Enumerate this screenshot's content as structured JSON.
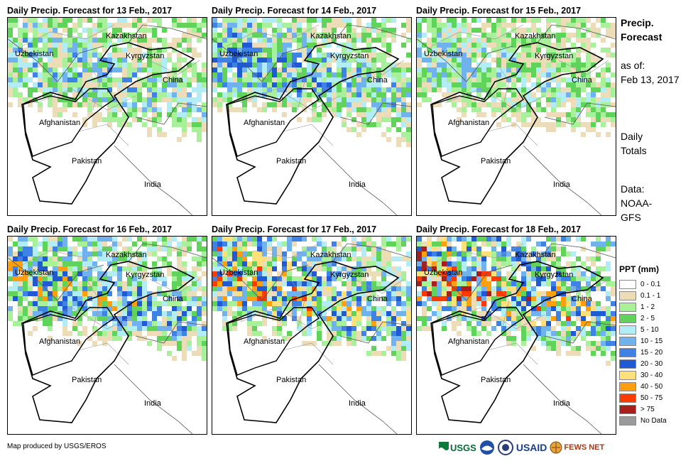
{
  "panels": [
    {
      "title": "Daily Precip. Forecast for 13 Feb., 2017"
    },
    {
      "title": "Daily Precip. Forecast for 14 Feb., 2017"
    },
    {
      "title": "Daily Precip. Forecast for 15 Feb., 2017"
    },
    {
      "title": "Daily Precip. Forecast for 16 Feb., 2017"
    },
    {
      "title": "Daily Precip. Forecast for 17 Feb., 2017"
    },
    {
      "title": "Daily Precip. Forecast for 18 Feb., 2017"
    }
  ],
  "countries": {
    "kazakhstan": "Kazakhstan",
    "uzbekistan": "Uzbekistan",
    "kyrgyzstan": "Kyrgyzstan",
    "china": "China",
    "afghanistan": "Afghanistan",
    "pakistan": "Pakistan",
    "india": "India"
  },
  "sidebar": {
    "title_line1": "Precip.",
    "title_line2": "Forecast",
    "asof_line1": "as of:",
    "asof_line2": "Feb 13, 2017",
    "daily_line1": "Daily",
    "daily_line2": "Totals",
    "data_line1": "Data:",
    "data_line2": "NOAA-",
    "data_line3": "GFS"
  },
  "legend": {
    "title": "PPT (mm)",
    "items": [
      {
        "label": "0 - 0.1",
        "color": "#ffffff"
      },
      {
        "label": "0.1 - 1",
        "color": "#ecdcb8"
      },
      {
        "label": "1 - 2",
        "color": "#a8f09a"
      },
      {
        "label": "2 - 5",
        "color": "#5fd35a"
      },
      {
        "label": "5 - 10",
        "color": "#b2ecf5"
      },
      {
        "label": "10 - 15",
        "color": "#6fb2ee"
      },
      {
        "label": "15 - 20",
        "color": "#3f82e6"
      },
      {
        "label": "20 - 30",
        "color": "#1f5ad2"
      },
      {
        "label": "30 - 40",
        "color": "#ffe07a"
      },
      {
        "label": "40 - 50",
        "color": "#ff9f10"
      },
      {
        "label": "50 - 75",
        "color": "#ff3a00"
      },
      {
        "label": "> 75",
        "color": "#a81d1d"
      },
      {
        "label": "No Data",
        "color": "#9a9a9a"
      }
    ]
  },
  "credit": "Map produced by USGS/EROS",
  "logos": {
    "usgs": "USGS",
    "usaid": "USAID",
    "fewsnet": "FEWS NET"
  }
}
